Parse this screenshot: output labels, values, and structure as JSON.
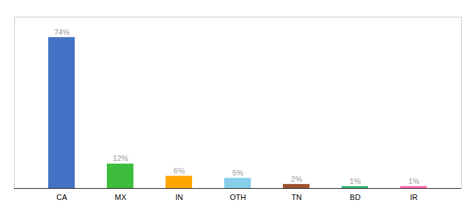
{
  "chart_data": {
    "type": "bar",
    "categories": [
      "CA",
      "MX",
      "IN",
      "OTH",
      "TN",
      "BD",
      "IR"
    ],
    "values": [
      74,
      12,
      6,
      5,
      2,
      1,
      1
    ],
    "value_labels": [
      "74%",
      "12%",
      "6%",
      "5%",
      "2%",
      "1%",
      "1%"
    ],
    "colors": [
      "#4472C4",
      "#3EBC3E",
      "#FFA500",
      "#87CEEB",
      "#A0522D",
      "#3CB371",
      "#FF69B4"
    ],
    "ylim": [
      0,
      84
    ],
    "data_labels": true,
    "tick_labels": "x",
    "grid": false
  }
}
